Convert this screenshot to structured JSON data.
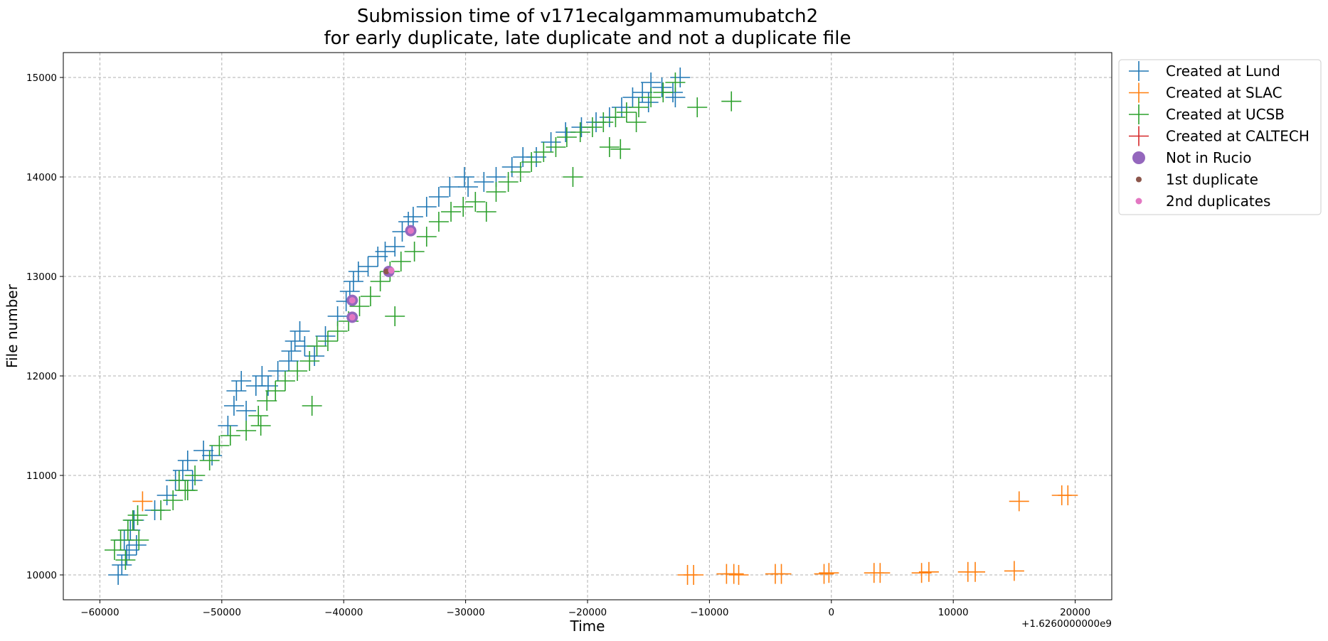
{
  "chart_data": {
    "type": "scatter",
    "title": [
      "Submission time of v171ecalgammamumubatch2",
      "for early duplicate, late duplicate and not a duplicate file"
    ],
    "xlabel": "Time",
    "ylabel": "File number",
    "x_offset_label": "+1.6260000000e9",
    "xlim": [
      -63000,
      23000
    ],
    "ylim": [
      9750,
      15250
    ],
    "xticks": [
      -60000,
      -50000,
      -40000,
      -30000,
      -20000,
      -10000,
      0,
      10000,
      20000
    ],
    "xtick_labels": [
      "−60000",
      "−50000",
      "−40000",
      "−30000",
      "−20000",
      "−10000",
      "0",
      "10000",
      "20000"
    ],
    "yticks": [
      10000,
      11000,
      12000,
      13000,
      14000,
      15000
    ],
    "ytick_labels": [
      "10000",
      "11000",
      "12000",
      "13000",
      "14000",
      "15000"
    ],
    "grid": true,
    "legend_position": "outside-top-right",
    "series": [
      {
        "name": "Created at Lund",
        "marker": "+",
        "color": "#1f77b4",
        "points": [
          [
            -58500,
            10000
          ],
          [
            -58200,
            10100
          ],
          [
            -57800,
            10200
          ],
          [
            -58000,
            10350
          ],
          [
            -57500,
            10450
          ],
          [
            -57200,
            10550
          ],
          [
            -57600,
            10250
          ],
          [
            -57000,
            10300
          ],
          [
            -55500,
            10650
          ],
          [
            -54500,
            10800
          ],
          [
            -53800,
            10950
          ],
          [
            -53200,
            11050
          ],
          [
            -52800,
            11150
          ],
          [
            -52400,
            10950
          ],
          [
            -51500,
            11250
          ],
          [
            -50800,
            11200
          ],
          [
            -49500,
            11500
          ],
          [
            -49000,
            11700
          ],
          [
            -48800,
            11850
          ],
          [
            -48400,
            11950
          ],
          [
            -48000,
            11650
          ],
          [
            -47200,
            11900
          ],
          [
            -46700,
            12000
          ],
          [
            -46200,
            11900
          ],
          [
            -45400,
            12050
          ],
          [
            -44500,
            12150
          ],
          [
            -44300,
            12250
          ],
          [
            -44000,
            12350
          ],
          [
            -43600,
            12450
          ],
          [
            -43200,
            12300
          ],
          [
            -42400,
            12200
          ],
          [
            -41500,
            12400
          ],
          [
            -40500,
            12600
          ],
          [
            -39800,
            12750
          ],
          [
            -39500,
            12850
          ],
          [
            -39200,
            12950
          ],
          [
            -38800,
            13050
          ],
          [
            -38000,
            13100
          ],
          [
            -37200,
            13200
          ],
          [
            -36600,
            13250
          ],
          [
            -35800,
            13300
          ],
          [
            -35200,
            13450
          ],
          [
            -34700,
            13550
          ],
          [
            -34300,
            13600
          ],
          [
            -33200,
            13700
          ],
          [
            -32200,
            13800
          ],
          [
            -31300,
            13900
          ],
          [
            -30100,
            14000
          ],
          [
            -29800,
            13900
          ],
          [
            -28500,
            13950
          ],
          [
            -27500,
            14000
          ],
          [
            -26200,
            14100
          ],
          [
            -25300,
            14200
          ],
          [
            -24200,
            14200
          ],
          [
            -23000,
            14350
          ],
          [
            -21800,
            14450
          ],
          [
            -20500,
            14500
          ],
          [
            -19300,
            14550
          ],
          [
            -18200,
            14600
          ],
          [
            -17200,
            14700
          ],
          [
            -16300,
            14800
          ],
          [
            -15500,
            14850
          ],
          [
            -14800,
            14950
          ],
          [
            -13900,
            14900
          ],
          [
            -13000,
            14850
          ],
          [
            -12400,
            15000
          ],
          [
            -15000,
            14750
          ],
          [
            -12800,
            14800
          ]
        ]
      },
      {
        "name": "Created at SLAC",
        "marker": "+",
        "color": "#ff7f0e",
        "points": [
          [
            -56500,
            10740
          ],
          [
            -11800,
            10000
          ],
          [
            -11300,
            10000
          ],
          [
            -8600,
            10010
          ],
          [
            -8000,
            10010
          ],
          [
            -7600,
            10000
          ],
          [
            -4600,
            10010
          ],
          [
            -4100,
            10010
          ],
          [
            -600,
            10010
          ],
          [
            -200,
            10020
          ],
          [
            3500,
            10020
          ],
          [
            4000,
            10020
          ],
          [
            7400,
            10020
          ],
          [
            8000,
            10030
          ],
          [
            11200,
            10030
          ],
          [
            11800,
            10030
          ],
          [
            15000,
            10040
          ],
          [
            15400,
            10740
          ],
          [
            18900,
            10800
          ],
          [
            19400,
            10800
          ]
        ]
      },
      {
        "name": "Created at UCSB",
        "marker": "+",
        "color": "#2ca02c",
        "points": [
          [
            -58800,
            10250
          ],
          [
            -58300,
            10350
          ],
          [
            -57700,
            10450
          ],
          [
            -57300,
            10550
          ],
          [
            -56900,
            10600
          ],
          [
            -57900,
            10150
          ],
          [
            -56800,
            10350
          ],
          [
            -55000,
            10650
          ],
          [
            -54000,
            10750
          ],
          [
            -53000,
            10850
          ],
          [
            -52200,
            11000
          ],
          [
            -51000,
            11150
          ],
          [
            -50200,
            11300
          ],
          [
            -53500,
            10950
          ],
          [
            -52800,
            10850
          ],
          [
            -49300,
            11400
          ],
          [
            -48000,
            11450
          ],
          [
            -47000,
            11600
          ],
          [
            -46300,
            11750
          ],
          [
            -45600,
            11850
          ],
          [
            -46800,
            11500
          ],
          [
            -44800,
            11950
          ],
          [
            -43800,
            12050
          ],
          [
            -42800,
            12150
          ],
          [
            -42200,
            12300
          ],
          [
            -41300,
            12350
          ],
          [
            -42600,
            11700
          ],
          [
            -40500,
            12450
          ],
          [
            -39600,
            12550
          ],
          [
            -38700,
            12700
          ],
          [
            -37800,
            12800
          ],
          [
            -37000,
            12950
          ],
          [
            -35800,
            12600
          ],
          [
            -36200,
            13050
          ],
          [
            -35300,
            13150
          ],
          [
            -34200,
            13250
          ],
          [
            -33200,
            13400
          ],
          [
            -32200,
            13550
          ],
          [
            -31200,
            13650
          ],
          [
            -30200,
            13700
          ],
          [
            -29200,
            13750
          ],
          [
            -28300,
            13650
          ],
          [
            -27500,
            13850
          ],
          [
            -26500,
            13950
          ],
          [
            -25500,
            14050
          ],
          [
            -24600,
            14150
          ],
          [
            -23600,
            14250
          ],
          [
            -22600,
            14300
          ],
          [
            -21700,
            14400
          ],
          [
            -20600,
            14450
          ],
          [
            -19600,
            14500
          ],
          [
            -18700,
            14550
          ],
          [
            -17700,
            14600
          ],
          [
            -16800,
            14650
          ],
          [
            -15800,
            14700
          ],
          [
            -14800,
            14800
          ],
          [
            -13800,
            14850
          ],
          [
            -12800,
            14950
          ],
          [
            -21200,
            14000
          ],
          [
            -18200,
            14300
          ],
          [
            -17300,
            14280
          ],
          [
            -11000,
            14700
          ],
          [
            -8200,
            14760
          ],
          [
            -16000,
            14550
          ]
        ]
      },
      {
        "name": "Created at CALTECH",
        "marker": "+",
        "color": "#d62728",
        "points": []
      },
      {
        "name": "Not in Rucio",
        "marker": "o",
        "color": "#9467bd",
        "points": [
          [
            -39300,
            12590
          ],
          [
            -39300,
            12760
          ],
          [
            -36300,
            13050
          ],
          [
            -34500,
            13460
          ]
        ]
      },
      {
        "name": "1st duplicate",
        "marker": "o",
        "color": "#8c564b",
        "points": [
          [
            -36500,
            13050
          ]
        ]
      },
      {
        "name": "2nd duplicates",
        "marker": "o",
        "color": "#e377c2",
        "points": [
          [
            -39300,
            12590
          ],
          [
            -39300,
            12760
          ],
          [
            -36100,
            13060
          ],
          [
            -34500,
            13460
          ]
        ]
      }
    ]
  }
}
